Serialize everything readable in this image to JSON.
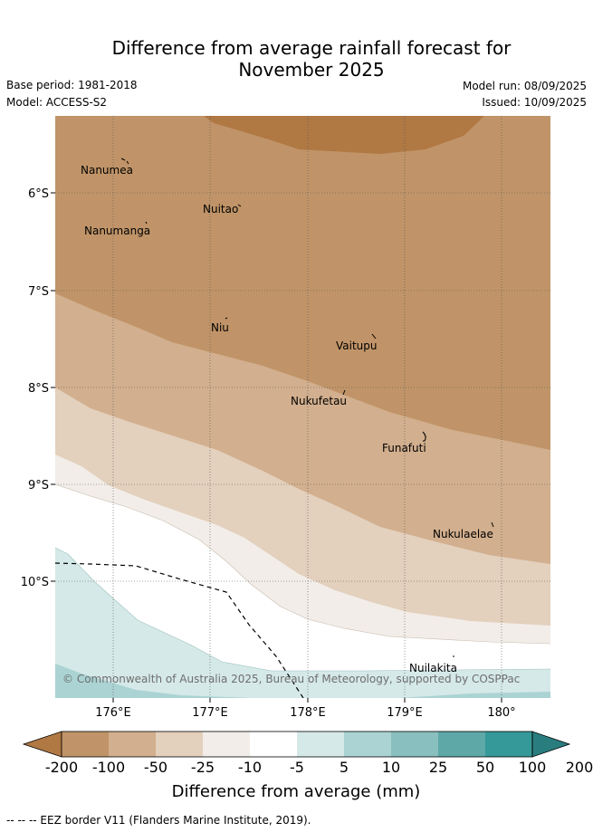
{
  "header": {
    "title_line1": "Difference from average rainfall forecast for",
    "title_line2": "November 2025",
    "base_period": "Base period: 1981-2018",
    "model": "Model: ACCESS-S2",
    "model_run": "Model run: 08/09/2025",
    "issued": "Issued: 10/09/2025"
  },
  "map": {
    "lon_ticks": [
      "176°E",
      "177°E",
      "178°E",
      "179°E",
      "180°"
    ],
    "lat_ticks": [
      "6°S",
      "7°S",
      "8°S",
      "9°S",
      "10°S"
    ],
    "places": [
      {
        "name": "Nanumea"
      },
      {
        "name": "Nuitao"
      },
      {
        "name": "Nanumanga"
      },
      {
        "name": "Niu"
      },
      {
        "name": "Vaitupu"
      },
      {
        "name": "Nukufetau"
      },
      {
        "name": "Funafuti"
      },
      {
        "name": "Nukulaelae"
      },
      {
        "name": "Nuilakita"
      }
    ],
    "copyright": "© Commonwealth of Australia 2025, Bureau of Meteorology, supported by COSPPac"
  },
  "colorbar": {
    "colors": [
      "#b07843",
      "#c09468",
      "#d2af8e",
      "#e3d0bd",
      "#f2ede8",
      "#ffffff",
      "#d5e9e8",
      "#abd3d3",
      "#89c0bf",
      "#5ea8a8",
      "#35999a",
      "#2a7d7f"
    ],
    "ticks": [
      "-200",
      "-100",
      "-50",
      "-25",
      "-10",
      "-5",
      "5",
      "10",
      "25",
      "50",
      "100",
      "200"
    ],
    "label": "Difference from average (mm)"
  },
  "footer": {
    "eez_note": "--  --  -- EEZ border V11 (Flanders Marine Institute, 2019)."
  }
}
